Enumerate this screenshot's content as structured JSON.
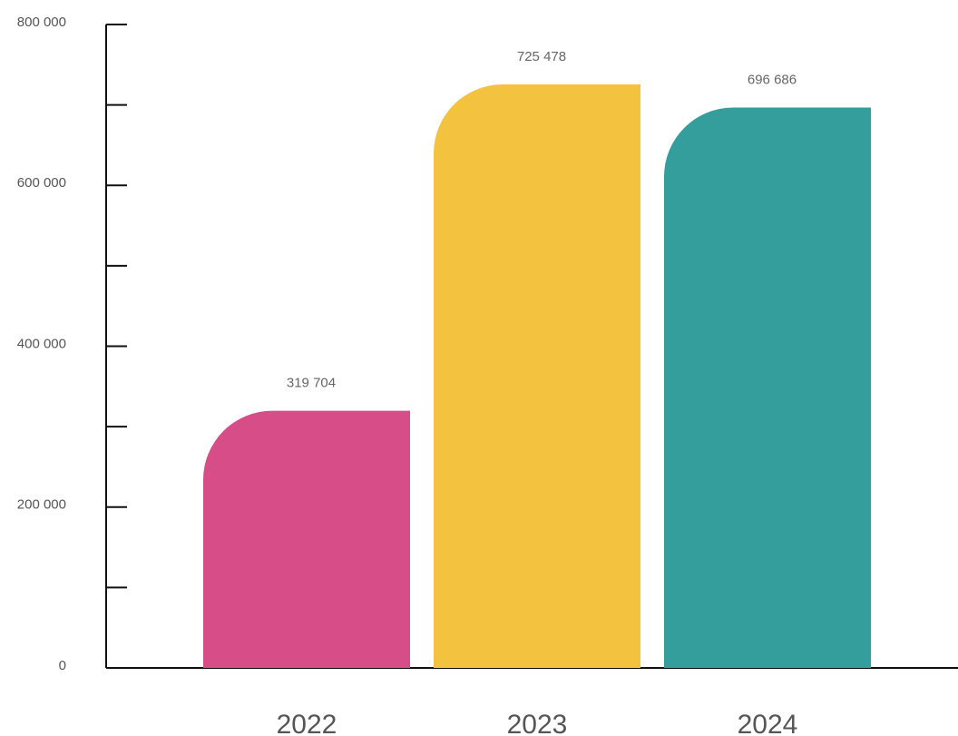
{
  "chart_data": {
    "type": "bar",
    "title": "",
    "xlabel": "",
    "ylabel": "",
    "categories": [
      "2022",
      "2023",
      "2024"
    ],
    "values": [
      319704,
      725478,
      696686
    ],
    "data_labels": [
      "319 704",
      "725 478",
      "696 686"
    ],
    "colors": [
      "#d64d87",
      "#f3c340",
      "#349e9c"
    ],
    "ylim": [
      0,
      800000
    ],
    "yticks": [
      0,
      200000,
      400000,
      600000,
      800000
    ],
    "ytick_labels": [
      "0",
      "200 000",
      "400 000",
      "600 000",
      "800 000"
    ],
    "minor_tick_step": 100000,
    "grid": false,
    "legend": "none"
  }
}
